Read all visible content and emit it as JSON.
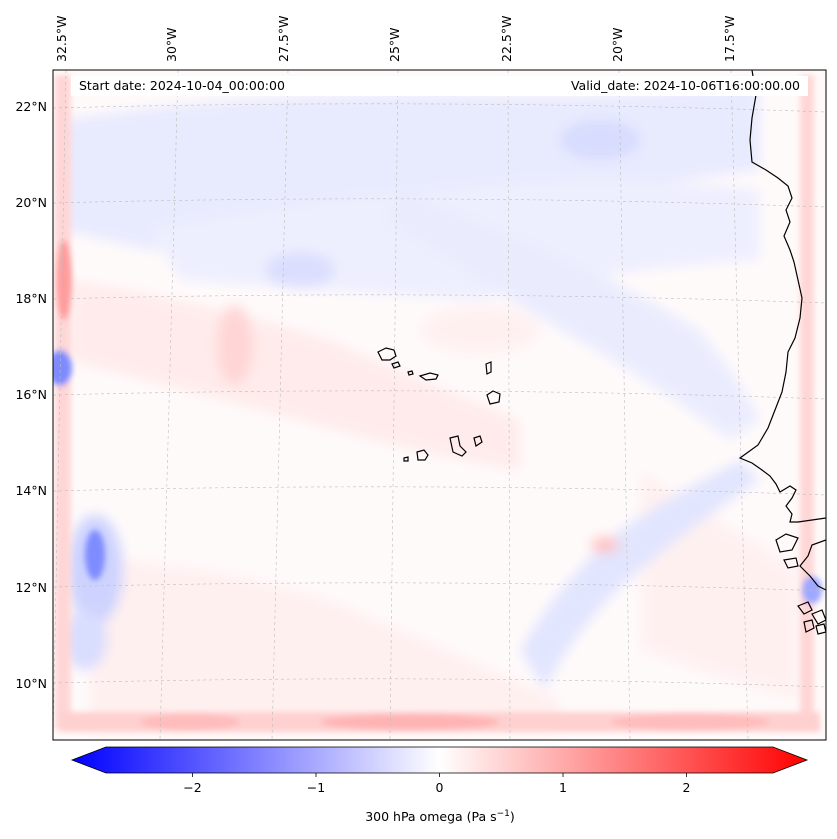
{
  "header": {
    "start_label": "Start date: 2024-10-04_00:00:00",
    "valid_label": "Valid_date: 2024-10-06T16:00:00.00"
  },
  "map": {
    "lon_labels": [
      "32.5°W",
      "30°W",
      "27.5°W",
      "25°W",
      "22.5°W",
      "20°W",
      "17.5°W"
    ],
    "lat_labels": [
      "22°N",
      "20°N",
      "18°N",
      "16°N",
      "14°N",
      "12°N",
      "10°N"
    ],
    "field": "300 hPa omega",
    "units": "Pa s⁻¹",
    "colormap": "bwr"
  },
  "colorbar": {
    "label": "300 hPa omega (Pa s",
    "label_sup": "−1",
    "label_close": ")",
    "min": -2.7,
    "max": 2.7,
    "ticks": [
      "−2",
      "−1",
      "0",
      "1",
      "2"
    ],
    "tick_values": [
      -2,
      -1,
      0,
      1,
      2
    ],
    "extend": "both"
  },
  "colors": {
    "negative": "#0000ff",
    "zero": "#ffffff",
    "positive": "#ff0000",
    "coastline": "#000000"
  }
}
